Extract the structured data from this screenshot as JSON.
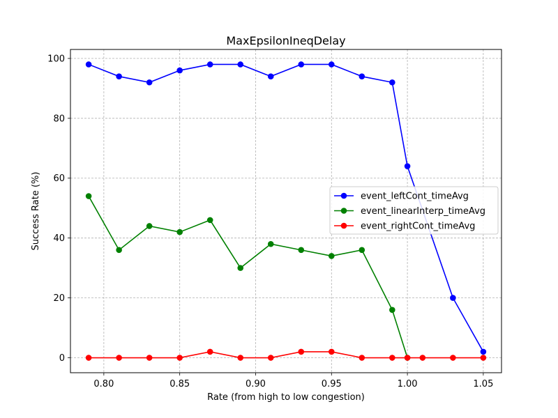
{
  "chart_data": {
    "type": "line",
    "title": "MaxEpsilonIneqDelay",
    "xlabel": "Rate (from high to low congestion)",
    "ylabel": "Success Rate (%)",
    "xlim": [
      0.778,
      1.062
    ],
    "ylim": [
      -5,
      103
    ],
    "x_ticks": [
      0.8,
      0.85,
      0.9,
      0.95,
      1.0,
      1.05
    ],
    "x_tick_labels": [
      "0.80",
      "0.85",
      "0.90",
      "0.95",
      "1.00",
      "1.05"
    ],
    "y_ticks": [
      0,
      20,
      40,
      60,
      80,
      100
    ],
    "y_tick_labels": [
      "0",
      "20",
      "40",
      "60",
      "80",
      "100"
    ],
    "grid": true,
    "legend_position": "center-right",
    "series": [
      {
        "name": "event_leftCont_timeAvg",
        "color": "#0000ff",
        "x": [
          0.79,
          0.81,
          0.83,
          0.85,
          0.87,
          0.89,
          0.91,
          0.93,
          0.95,
          0.97,
          0.99,
          1.0,
          1.03,
          1.05
        ],
        "y": [
          98,
          94,
          92,
          96,
          98,
          98,
          94,
          98,
          98,
          94,
          92,
          64,
          20,
          2
        ]
      },
      {
        "name": "event_linearInterp_timeAvg",
        "color": "#008000",
        "x": [
          0.79,
          0.81,
          0.83,
          0.85,
          0.87,
          0.89,
          0.91,
          0.93,
          0.95,
          0.97,
          0.99,
          1.0
        ],
        "y": [
          54,
          36,
          44,
          42,
          46,
          30,
          38,
          36,
          34,
          36,
          16,
          0
        ]
      },
      {
        "name": "event_rightCont_timeAvg",
        "color": "#ff0000",
        "x": [
          0.79,
          0.81,
          0.83,
          0.85,
          0.87,
          0.89,
          0.91,
          0.93,
          0.95,
          0.97,
          0.99,
          1.0,
          1.01,
          1.03,
          1.05
        ],
        "y": [
          0,
          0,
          0,
          0,
          2,
          0,
          0,
          2,
          2,
          0,
          0,
          0,
          0,
          0,
          0
        ]
      }
    ]
  }
}
